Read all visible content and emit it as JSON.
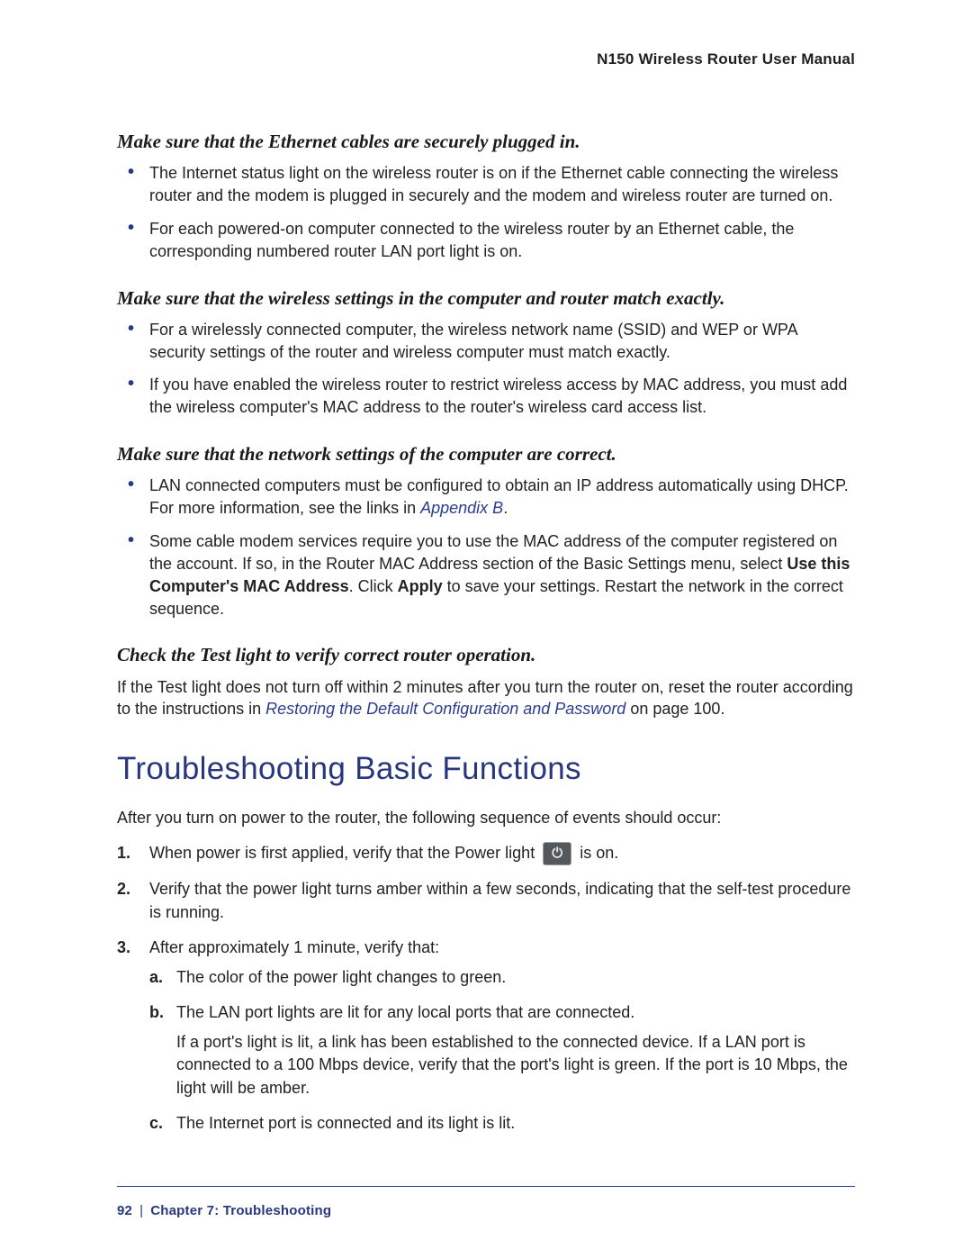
{
  "header": {
    "title": "N150 Wireless Router User Manual"
  },
  "colors": {
    "accent": "#27377e",
    "link": "#2a3d8f",
    "text": "#222222",
    "bg": "#ffffff"
  },
  "s1": {
    "heading": "Make sure that the Ethernet cables are securely plugged in.",
    "b1": "The Internet status light on the wireless router is on if the Ethernet cable connecting the wireless router and the modem is plugged in securely and the modem and wireless router are turned on.",
    "b2": "For each powered-on computer connected to the wireless router by an Ethernet cable, the corresponding numbered router LAN port light is on."
  },
  "s2": {
    "heading": "Make sure that the wireless settings in the computer and router match exactly.",
    "b1": "For a wirelessly connected computer, the wireless network name (SSID) and WEP or WPA security settings of the router and wireless computer must match exactly.",
    "b2": "If you have enabled the wireless router to restrict wireless access by MAC address, you must add the wireless computer's MAC address to the router's wireless card access list."
  },
  "s3": {
    "heading": "Make sure that the network settings of the computer are correct.",
    "b1a": "LAN connected computers must be configured to obtain an IP address automatically using DHCP. For more information, see the links in ",
    "b1_link": "Appendix B",
    "b1b": ".",
    "b2a": "Some cable modem services require you to use the MAC address of the computer registered on the account. If so, in the Router MAC Address section of the Basic Settings menu, select ",
    "b2_bold1": "Use this Computer's MAC Address",
    "b2b": ". Click ",
    "b2_bold2": "Apply",
    "b2c": " to save your settings. Restart the network in the correct sequence."
  },
  "s4": {
    "heading": "Check the Test light to verify correct router operation.",
    "p1a": "If the Test light does not turn off within 2 minutes after you turn the router on, reset the router according to the instructions in ",
    "p1_link": "Restoring the Default Configuration and Password",
    "p1b": " on page 100."
  },
  "section_title": "Troubleshooting Basic Functions",
  "intro": "After you turn on power to the router, the following sequence of events should occur:",
  "ol": {
    "i1a": "When power is first applied, verify that the Power light ",
    "i1b": " is on.",
    "i2": "Verify that the power light turns amber within a few seconds, indicating that the self-test procedure is running.",
    "i3": "After approximately 1 minute, verify that:",
    "a1": "The color of the power light changes to green.",
    "a2": "The LAN port lights are lit for any local ports that are connected.",
    "a2p": "If a port's light is lit, a link has been established to the connected device. If a LAN port is connected to a 100 Mbps device, verify that the port's light is green. If the port is 10 Mbps, the light will be amber.",
    "a3": "The Internet port is connected and its light is lit."
  },
  "footer": {
    "page": "92",
    "chapter": "Chapter 7:  Troubleshooting"
  }
}
